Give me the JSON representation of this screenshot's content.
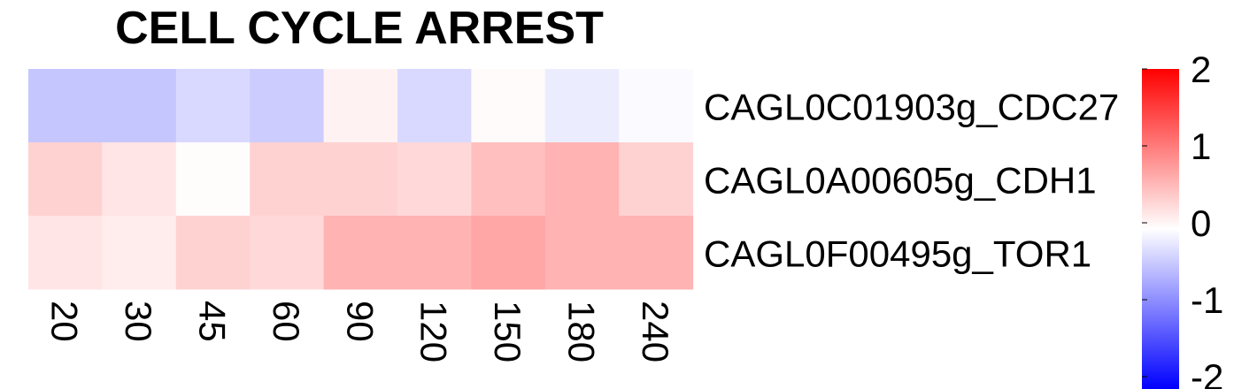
{
  "chart_data": {
    "type": "heatmap",
    "title": "CELL CYCLE ARREST",
    "columns": [
      "20",
      "30",
      "45",
      "60",
      "90",
      "120",
      "150",
      "180",
      "240"
    ],
    "rows": [
      "CAGL0C01903g_CDC27",
      "CAGL0A00605g_CDH1",
      "CAGL0F00495g_TOR1"
    ],
    "values": [
      [
        -0.45,
        -0.45,
        -0.3,
        -0.4,
        0.1,
        -0.3,
        0.03,
        -0.15,
        -0.04
      ],
      [
        0.35,
        0.2,
        0.02,
        0.35,
        0.35,
        0.3,
        0.5,
        0.6,
        0.35
      ],
      [
        0.2,
        0.15,
        0.35,
        0.3,
        0.6,
        0.6,
        0.7,
        0.6,
        0.6
      ]
    ],
    "legend": {
      "range": [
        -2,
        2
      ],
      "ticks": [
        2,
        1,
        0,
        -1,
        -2
      ],
      "colors": {
        "low": "#0000ff",
        "mid": "#ffffff",
        "high": "#ff0000"
      }
    }
  }
}
